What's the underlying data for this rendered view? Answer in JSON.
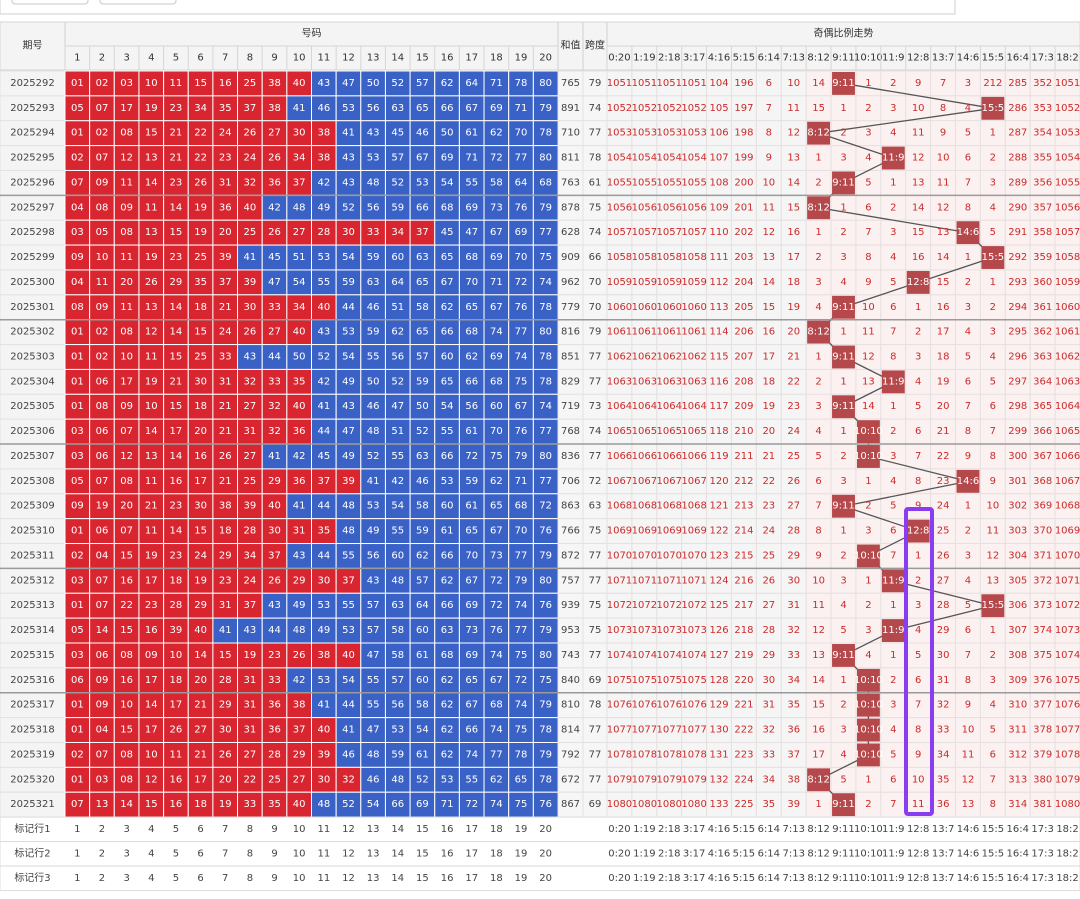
{
  "header": {
    "issue": "期号",
    "numbers": "号码",
    "sum": "和值",
    "span": "跨度",
    "trend": "奇偶比例走势"
  },
  "number_columns": [
    1,
    2,
    3,
    4,
    5,
    6,
    7,
    8,
    9,
    10,
    11,
    12,
    13,
    14,
    15,
    16,
    17,
    18,
    19,
    20
  ],
  "trend_columns": [
    "0:20",
    "1:19",
    "2:18",
    "3:17",
    "4:16",
    "5:15",
    "6:14",
    "7:13",
    "8:12",
    "9:11",
    "10:10",
    "11:9",
    "12:8",
    "13:7",
    "14:6",
    "15:5",
    "16:4",
    "17:3",
    "18:2"
  ],
  "rows": [
    {
      "issue": 2025292,
      "numbers": [
        "01",
        "02",
        "03",
        "10",
        "11",
        "15",
        "16",
        "25",
        "38",
        "40",
        "43",
        "47",
        "50",
        "52",
        "57",
        "62",
        "64",
        "71",
        "78",
        "80"
      ],
      "sum": 765,
      "span": 79,
      "trend": [
        1051,
        1051,
        1051,
        1051,
        104,
        196,
        6,
        10,
        14,
        "9:11",
        1,
        2,
        9,
        7,
        3,
        212,
        285,
        352,
        1051
      ]
    },
    {
      "issue": 2025293,
      "numbers": [
        "05",
        "07",
        "17",
        "19",
        "23",
        "34",
        "35",
        "37",
        "38",
        "41",
        "46",
        "53",
        "56",
        "63",
        "65",
        "66",
        "67",
        "69",
        "71",
        "79"
      ],
      "sum": 891,
      "span": 74,
      "trend": [
        1052,
        1052,
        1052,
        1052,
        105,
        197,
        7,
        11,
        15,
        1,
        2,
        3,
        10,
        8,
        4,
        "15:5",
        286,
        353,
        1052
      ]
    },
    {
      "issue": 2025294,
      "numbers": [
        "01",
        "02",
        "08",
        "15",
        "21",
        "22",
        "24",
        "26",
        "27",
        "30",
        "38",
        "41",
        "43",
        "45",
        "46",
        "50",
        "61",
        "62",
        "70",
        "78"
      ],
      "sum": 710,
      "span": 77,
      "trend": [
        1053,
        1053,
        1053,
        1053,
        106,
        198,
        8,
        12,
        "8:12",
        2,
        3,
        4,
        11,
        9,
        5,
        1,
        287,
        354,
        1053
      ]
    },
    {
      "issue": 2025295,
      "numbers": [
        "02",
        "07",
        "12",
        "13",
        "21",
        "22",
        "23",
        "24",
        "26",
        "34",
        "38",
        "43",
        "53",
        "57",
        "67",
        "69",
        "71",
        "72",
        "77",
        "80"
      ],
      "sum": 811,
      "span": 78,
      "trend": [
        1054,
        1054,
        1054,
        1054,
        107,
        199,
        9,
        13,
        1,
        3,
        4,
        "11:9",
        12,
        10,
        6,
        2,
        288,
        355,
        1054
      ]
    },
    {
      "issue": 2025296,
      "numbers": [
        "07",
        "09",
        "11",
        "14",
        "23",
        "26",
        "31",
        "32",
        "36",
        "37",
        "42",
        "43",
        "48",
        "52",
        "53",
        "54",
        "55",
        "58",
        "64",
        "68"
      ],
      "sum": 763,
      "span": 61,
      "trend": [
        1055,
        1055,
        1055,
        1055,
        108,
        200,
        10,
        14,
        2,
        "9:11",
        5,
        1,
        13,
        11,
        7,
        3,
        289,
        356,
        1055
      ]
    },
    {
      "issue": 2025297,
      "numbers": [
        "04",
        "08",
        "09",
        "11",
        "14",
        "19",
        "36",
        "40",
        "42",
        "48",
        "49",
        "52",
        "56",
        "59",
        "66",
        "68",
        "69",
        "73",
        "76",
        "79"
      ],
      "sum": 878,
      "span": 75,
      "trend": [
        1056,
        1056,
        1056,
        1056,
        109,
        201,
        11,
        15,
        "8:12",
        1,
        6,
        2,
        14,
        12,
        8,
        4,
        290,
        357,
        1056
      ]
    },
    {
      "issue": 2025298,
      "numbers": [
        "03",
        "05",
        "08",
        "13",
        "15",
        "19",
        "20",
        "25",
        "26",
        "27",
        "28",
        "30",
        "33",
        "34",
        "37",
        "45",
        "47",
        "67",
        "69",
        "77"
      ],
      "sum": 628,
      "span": 74,
      "trend": [
        1057,
        1057,
        1057,
        1057,
        110,
        202,
        12,
        16,
        1,
        2,
        7,
        3,
        15,
        13,
        "14:6",
        5,
        291,
        358,
        1057
      ]
    },
    {
      "issue": 2025299,
      "numbers": [
        "09",
        "10",
        "11",
        "19",
        "23",
        "25",
        "39",
        "41",
        "45",
        "51",
        "53",
        "54",
        "59",
        "60",
        "63",
        "65",
        "68",
        "69",
        "70",
        "75"
      ],
      "sum": 909,
      "span": 66,
      "trend": [
        1058,
        1058,
        1058,
        1058,
        111,
        203,
        13,
        17,
        2,
        3,
        8,
        4,
        16,
        14,
        1,
        "15:5",
        292,
        359,
        1058
      ]
    },
    {
      "issue": 2025300,
      "numbers": [
        "04",
        "11",
        "20",
        "26",
        "29",
        "35",
        "37",
        "39",
        "47",
        "54",
        "55",
        "59",
        "63",
        "64",
        "65",
        "67",
        "70",
        "71",
        "72",
        "74"
      ],
      "sum": 962,
      "span": 70,
      "trend": [
        1059,
        1059,
        1059,
        1059,
        112,
        204,
        14,
        18,
        3,
        4,
        9,
        5,
        "12:8",
        15,
        2,
        1,
        293,
        360,
        1059
      ]
    },
    {
      "issue": 2025301,
      "numbers": [
        "08",
        "09",
        "11",
        "13",
        "14",
        "18",
        "21",
        "30",
        "33",
        "34",
        "40",
        "44",
        "46",
        "51",
        "58",
        "62",
        "65",
        "67",
        "76",
        "78"
      ],
      "sum": 779,
      "span": 70,
      "trend": [
        1060,
        1060,
        1060,
        1060,
        113,
        205,
        15,
        19,
        4,
        "9:11",
        10,
        6,
        1,
        16,
        3,
        2,
        294,
        361,
        1060
      ]
    },
    {
      "issue": 2025302,
      "numbers": [
        "01",
        "02",
        "08",
        "12",
        "14",
        "15",
        "24",
        "26",
        "27",
        "40",
        "43",
        "53",
        "59",
        "62",
        "65",
        "66",
        "68",
        "74",
        "77",
        "80"
      ],
      "sum": 816,
      "span": 79,
      "trend": [
        1061,
        1061,
        1061,
        1061,
        114,
        206,
        16,
        20,
        "8:12",
        1,
        11,
        7,
        2,
        17,
        4,
        3,
        295,
        362,
        1061
      ]
    },
    {
      "issue": 2025303,
      "numbers": [
        "01",
        "02",
        "10",
        "11",
        "15",
        "25",
        "33",
        "43",
        "44",
        "50",
        "52",
        "54",
        "55",
        "56",
        "57",
        "60",
        "62",
        "69",
        "74",
        "78"
      ],
      "sum": 851,
      "span": 77,
      "trend": [
        1062,
        1062,
        1062,
        1062,
        115,
        207,
        17,
        21,
        1,
        "9:11",
        12,
        8,
        3,
        18,
        5,
        4,
        296,
        363,
        1062
      ]
    },
    {
      "issue": 2025304,
      "numbers": [
        "01",
        "06",
        "17",
        "19",
        "21",
        "30",
        "31",
        "32",
        "33",
        "35",
        "42",
        "49",
        "50",
        "52",
        "59",
        "65",
        "66",
        "68",
        "75",
        "78"
      ],
      "sum": 829,
      "span": 77,
      "trend": [
        1063,
        1063,
        1063,
        1063,
        116,
        208,
        18,
        22,
        2,
        1,
        13,
        "11:9",
        4,
        19,
        6,
        5,
        297,
        364,
        1063
      ]
    },
    {
      "issue": 2025305,
      "numbers": [
        "01",
        "08",
        "09",
        "10",
        "15",
        "18",
        "21",
        "27",
        "32",
        "40",
        "41",
        "43",
        "46",
        "47",
        "50",
        "54",
        "56",
        "60",
        "67",
        "74"
      ],
      "sum": 719,
      "span": 73,
      "trend": [
        1064,
        1064,
        1064,
        1064,
        117,
        209,
        19,
        23,
        3,
        "9:11",
        14,
        1,
        5,
        20,
        7,
        6,
        298,
        365,
        1064
      ]
    },
    {
      "issue": 2025306,
      "numbers": [
        "03",
        "06",
        "07",
        "14",
        "17",
        "20",
        "21",
        "31",
        "32",
        "36",
        "44",
        "47",
        "48",
        "51",
        "52",
        "55",
        "61",
        "70",
        "76",
        "77"
      ],
      "sum": 768,
      "span": 74,
      "trend": [
        1065,
        1065,
        1065,
        1065,
        118,
        210,
        20,
        24,
        4,
        1,
        "10:10",
        2,
        6,
        21,
        8,
        7,
        299,
        366,
        1065
      ]
    },
    {
      "issue": 2025307,
      "numbers": [
        "03",
        "06",
        "12",
        "13",
        "14",
        "16",
        "26",
        "27",
        "41",
        "42",
        "45",
        "49",
        "52",
        "55",
        "63",
        "66",
        "72",
        "75",
        "79",
        "80"
      ],
      "sum": 836,
      "span": 77,
      "trend": [
        1066,
        1066,
        1066,
        1066,
        119,
        211,
        21,
        25,
        5,
        2,
        "10:10",
        3,
        7,
        22,
        9,
        8,
        300,
        367,
        1066
      ]
    },
    {
      "issue": 2025308,
      "numbers": [
        "05",
        "07",
        "08",
        "11",
        "16",
        "17",
        "21",
        "25",
        "29",
        "36",
        "37",
        "39",
        "41",
        "42",
        "46",
        "53",
        "59",
        "62",
        "71",
        "77"
      ],
      "sum": 706,
      "span": 72,
      "trend": [
        1067,
        1067,
        1067,
        1067,
        120,
        212,
        22,
        26,
        6,
        3,
        1,
        4,
        8,
        23,
        "14:6",
        9,
        301,
        368,
        1067
      ]
    },
    {
      "issue": 2025309,
      "numbers": [
        "09",
        "19",
        "20",
        "21",
        "23",
        "30",
        "38",
        "39",
        "40",
        "41",
        "44",
        "48",
        "53",
        "54",
        "58",
        "60",
        "61",
        "65",
        "68",
        "72"
      ],
      "sum": 863,
      "span": 63,
      "trend": [
        1068,
        1068,
        1068,
        1068,
        121,
        213,
        23,
        27,
        7,
        "9:11",
        2,
        5,
        9,
        24,
        1,
        10,
        302,
        369,
        1068
      ]
    },
    {
      "issue": 2025310,
      "numbers": [
        "01",
        "06",
        "07",
        "11",
        "14",
        "15",
        "18",
        "28",
        "30",
        "31",
        "35",
        "48",
        "49",
        "55",
        "59",
        "61",
        "65",
        "67",
        "70",
        "76"
      ],
      "sum": 766,
      "span": 75,
      "trend": [
        1069,
        1069,
        1069,
        1069,
        122,
        214,
        24,
        28,
        8,
        1,
        3,
        6,
        "12:8",
        25,
        2,
        11,
        303,
        370,
        1069
      ]
    },
    {
      "issue": 2025311,
      "numbers": [
        "02",
        "04",
        "15",
        "19",
        "23",
        "24",
        "29",
        "34",
        "37",
        "43",
        "44",
        "55",
        "56",
        "60",
        "62",
        "66",
        "70",
        "73",
        "77",
        "79"
      ],
      "sum": 872,
      "span": 77,
      "trend": [
        1070,
        1070,
        1070,
        1070,
        123,
        215,
        25,
        29,
        9,
        2,
        "10:10",
        7,
        1,
        26,
        3,
        12,
        304,
        371,
        1070
      ]
    },
    {
      "issue": 2025312,
      "numbers": [
        "03",
        "07",
        "16",
        "17",
        "18",
        "19",
        "23",
        "24",
        "26",
        "29",
        "30",
        "37",
        "43",
        "48",
        "57",
        "62",
        "67",
        "72",
        "79",
        "80"
      ],
      "sum": 757,
      "span": 77,
      "trend": [
        1071,
        1071,
        1071,
        1071,
        124,
        216,
        26,
        30,
        10,
        3,
        1,
        "11:9",
        2,
        27,
        4,
        13,
        305,
        372,
        1071
      ]
    },
    {
      "issue": 2025313,
      "numbers": [
        "01",
        "07",
        "22",
        "23",
        "28",
        "29",
        "31",
        "37",
        "43",
        "49",
        "53",
        "55",
        "57",
        "63",
        "64",
        "66",
        "69",
        "72",
        "74",
        "76"
      ],
      "sum": 939,
      "span": 75,
      "trend": [
        1072,
        1072,
        1072,
        1072,
        125,
        217,
        27,
        31,
        11,
        4,
        2,
        1,
        3,
        28,
        5,
        "15:5",
        306,
        373,
        1072
      ]
    },
    {
      "issue": 2025314,
      "numbers": [
        "05",
        "14",
        "15",
        "16",
        "39",
        "40",
        "41",
        "43",
        "44",
        "48",
        "49",
        "53",
        "57",
        "58",
        "60",
        "63",
        "73",
        "76",
        "77",
        "79"
      ],
      "sum": 953,
      "span": 75,
      "trend": [
        1073,
        1073,
        1073,
        1073,
        126,
        218,
        28,
        32,
        12,
        5,
        3,
        "11:9",
        4,
        29,
        6,
        1,
        307,
        374,
        1073
      ]
    },
    {
      "issue": 2025315,
      "numbers": [
        "03",
        "06",
        "08",
        "09",
        "10",
        "14",
        "15",
        "19",
        "23",
        "26",
        "38",
        "40",
        "47",
        "58",
        "61",
        "68",
        "69",
        "74",
        "75",
        "80"
      ],
      "sum": 743,
      "span": 77,
      "trend": [
        1074,
        1074,
        1074,
        1074,
        127,
        219,
        29,
        33,
        13,
        "9:11",
        4,
        1,
        5,
        30,
        7,
        2,
        308,
        375,
        1074
      ]
    },
    {
      "issue": 2025316,
      "numbers": [
        "06",
        "09",
        "16",
        "17",
        "18",
        "20",
        "28",
        "31",
        "33",
        "42",
        "53",
        "54",
        "55",
        "57",
        "60",
        "62",
        "65",
        "67",
        "72",
        "75"
      ],
      "sum": 840,
      "span": 69,
      "trend": [
        1075,
        1075,
        1075,
        1075,
        128,
        220,
        30,
        34,
        14,
        1,
        "10:10",
        2,
        6,
        31,
        8,
        3,
        309,
        376,
        1075
      ]
    },
    {
      "issue": 2025317,
      "numbers": [
        "01",
        "09",
        "10",
        "14",
        "17",
        "21",
        "29",
        "31",
        "36",
        "38",
        "41",
        "44",
        "55",
        "56",
        "58",
        "62",
        "67",
        "68",
        "74",
        "79"
      ],
      "sum": 810,
      "span": 78,
      "trend": [
        1076,
        1076,
        1076,
        1076,
        129,
        221,
        31,
        35,
        15,
        2,
        "10:10",
        3,
        7,
        32,
        9,
        4,
        310,
        377,
        1076
      ]
    },
    {
      "issue": 2025318,
      "numbers": [
        "01",
        "04",
        "15",
        "17",
        "26",
        "27",
        "30",
        "31",
        "36",
        "37",
        "40",
        "41",
        "47",
        "53",
        "54",
        "62",
        "66",
        "74",
        "75",
        "78"
      ],
      "sum": 814,
      "span": 77,
      "trend": [
        1077,
        1077,
        1077,
        1077,
        130,
        222,
        32,
        36,
        16,
        3,
        "10:10",
        4,
        8,
        33,
        10,
        5,
        311,
        378,
        1077
      ]
    },
    {
      "issue": 2025319,
      "numbers": [
        "02",
        "07",
        "08",
        "10",
        "11",
        "21",
        "26",
        "27",
        "28",
        "29",
        "39",
        "46",
        "48",
        "59",
        "61",
        "62",
        "74",
        "77",
        "78",
        "79"
      ],
      "sum": 792,
      "span": 77,
      "trend": [
        1078,
        1078,
        1078,
        1078,
        131,
        223,
        33,
        37,
        17,
        4,
        "10:10",
        5,
        9,
        34,
        11,
        6,
        312,
        379,
        1078
      ]
    },
    {
      "issue": 2025320,
      "numbers": [
        "01",
        "03",
        "08",
        "12",
        "16",
        "17",
        "20",
        "22",
        "25",
        "27",
        "30",
        "32",
        "46",
        "48",
        "52",
        "53",
        "55",
        "62",
        "65",
        "78"
      ],
      "sum": 672,
      "span": 77,
      "trend": [
        1079,
        1079,
        1079,
        1079,
        132,
        224,
        34,
        38,
        "8:12",
        5,
        1,
        6,
        10,
        35,
        12,
        7,
        313,
        380,
        1079
      ]
    },
    {
      "issue": 2025321,
      "numbers": [
        "07",
        "13",
        "14",
        "15",
        "16",
        "18",
        "19",
        "33",
        "35",
        "40",
        "48",
        "52",
        "54",
        "66",
        "69",
        "71",
        "72",
        "74",
        "75",
        "76"
      ],
      "sum": 867,
      "span": 69,
      "trend": [
        1080,
        1080,
        1080,
        1080,
        133,
        225,
        35,
        39,
        1,
        "9:11",
        2,
        7,
        11,
        36,
        13,
        8,
        314,
        381,
        1080
      ]
    }
  ],
  "footer_rows": [
    "标记行1",
    "标记行2",
    "标记行3"
  ]
}
